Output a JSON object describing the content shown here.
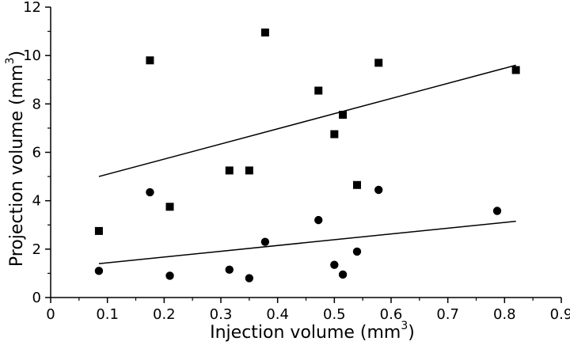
{
  "chart_data": {
    "type": "scatter",
    "title": "",
    "xlabel": "Injection volume (mm",
    "xlabel_sup": "3",
    "xlabel_close": ")",
    "ylabel": "Projection volume (mm",
    "ylabel_sup": "3",
    "ylabel_close": ")",
    "xlim": [
      0,
      0.9
    ],
    "ylim": [
      0,
      12
    ],
    "xticks": [
      "0",
      "0.1",
      "0.2",
      "0.3",
      "0.4",
      "0.5",
      "0.6",
      "0.7",
      "0.8",
      "0.9"
    ],
    "yticks": [
      "0",
      "2",
      "4",
      "6",
      "8",
      "10",
      "12"
    ],
    "grid": false,
    "legend": "none",
    "series": [
      {
        "marker": "square",
        "color": "#000000",
        "points": [
          {
            "x": 0.085,
            "y": 2.75
          },
          {
            "x": 0.175,
            "y": 9.8
          },
          {
            "x": 0.21,
            "y": 3.75
          },
          {
            "x": 0.315,
            "y": 5.25
          },
          {
            "x": 0.35,
            "y": 5.25
          },
          {
            "x": 0.378,
            "y": 10.95
          },
          {
            "x": 0.472,
            "y": 8.55
          },
          {
            "x": 0.5,
            "y": 6.75
          },
          {
            "x": 0.515,
            "y": 7.55
          },
          {
            "x": 0.54,
            "y": 4.65
          },
          {
            "x": 0.578,
            "y": 9.7
          },
          {
            "x": 0.82,
            "y": 9.4
          }
        ],
        "fit": {
          "x": [
            0.085,
            0.82
          ],
          "y": [
            5.0,
            9.6
          ]
        }
      },
      {
        "marker": "circle",
        "color": "#000000",
        "points": [
          {
            "x": 0.085,
            "y": 1.1
          },
          {
            "x": 0.175,
            "y": 4.35
          },
          {
            "x": 0.21,
            "y": 0.9
          },
          {
            "x": 0.315,
            "y": 1.15
          },
          {
            "x": 0.35,
            "y": 0.8
          },
          {
            "x": 0.378,
            "y": 2.3
          },
          {
            "x": 0.472,
            "y": 3.2
          },
          {
            "x": 0.5,
            "y": 1.35
          },
          {
            "x": 0.515,
            "y": 0.95
          },
          {
            "x": 0.54,
            "y": 1.9
          },
          {
            "x": 0.578,
            "y": 4.45
          },
          {
            "x": 0.787,
            "y": 3.58
          }
        ],
        "fit": {
          "x": [
            0.085,
            0.82
          ],
          "y": [
            1.4,
            3.15
          ]
        }
      }
    ]
  }
}
